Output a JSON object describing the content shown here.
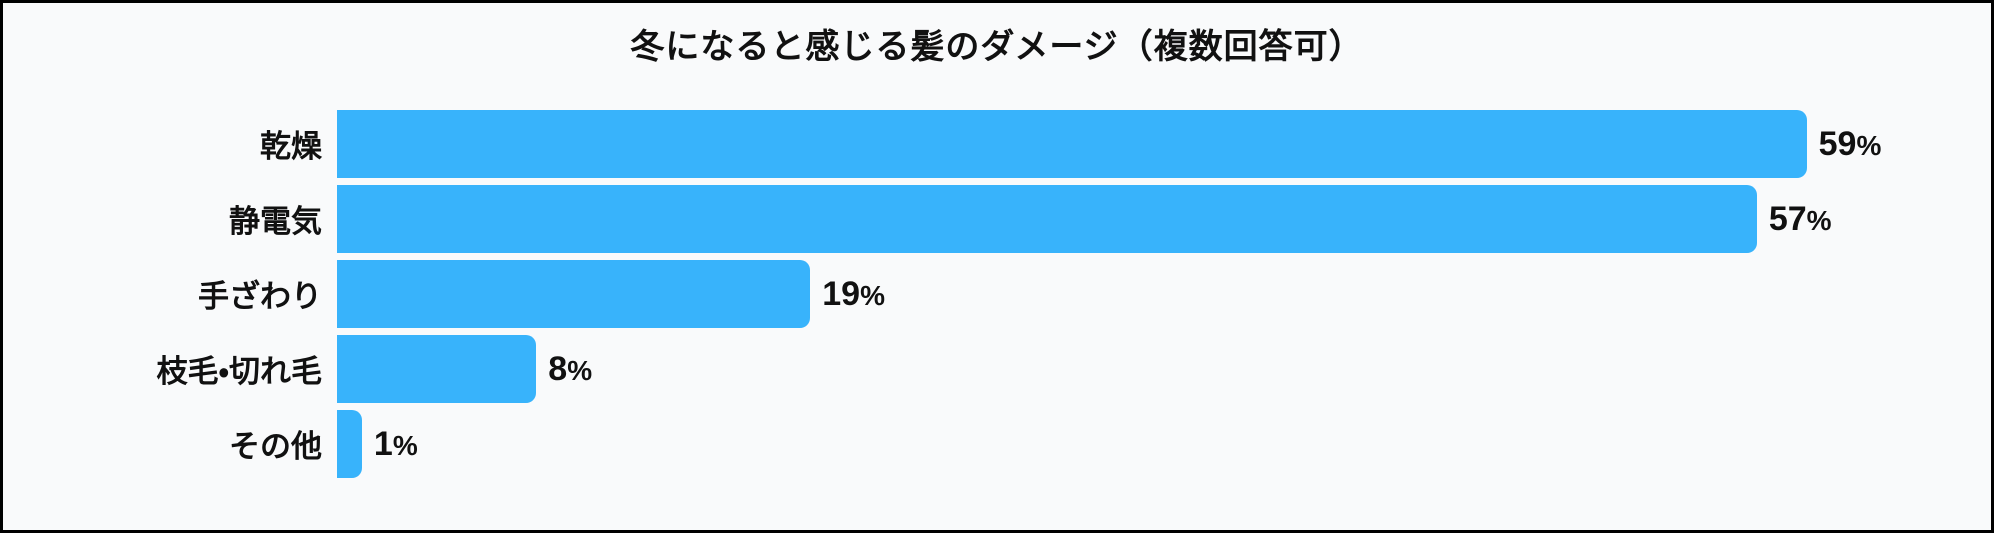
{
  "chart_data": {
    "type": "bar",
    "orientation": "horizontal",
    "title": "冬になると感じる髪のダメージ（複数回答可）",
    "categories": [
      "乾燥",
      "静電気",
      "手ざわり",
      "枝毛・切れ毛",
      "その他"
    ],
    "values": [
      59,
      57,
      19,
      8,
      1
    ],
    "value_labels": [
      "59%",
      "57%",
      "19%",
      "8%",
      "1%"
    ],
    "unit": "%",
    "xlabel": "",
    "ylabel": "",
    "xlim": [
      0,
      66
    ],
    "grid": false,
    "legend": false,
    "bars_sorted_descending": true,
    "colors": {
      "bar": "#38b3fb",
      "background": "#f9fafb",
      "text": "#111111",
      "frame_border": "#000000"
    }
  }
}
